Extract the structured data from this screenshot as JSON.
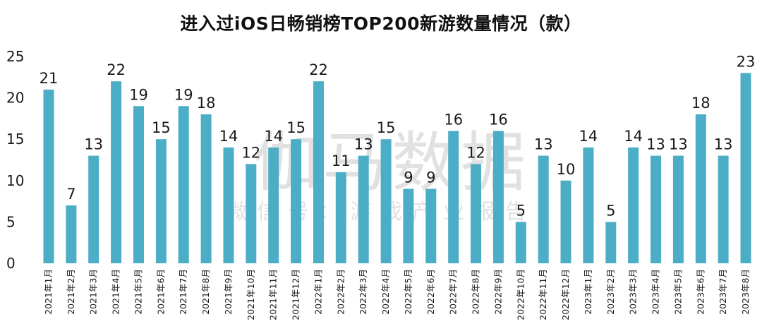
{
  "chart_data": {
    "type": "bar",
    "title": "进入过iOS日畅销榜TOP200新游数量情况（款）",
    "categories": [
      "2021年1月",
      "2021年2月",
      "2021年3月",
      "2021年4月",
      "2021年5月",
      "2021年6月",
      "2021年7月",
      "2021年8月",
      "2021年9月",
      "2021年10月",
      "2021年11月",
      "2021年12月",
      "2022年1月",
      "2022年2月",
      "2022年3月",
      "2022年4月",
      "2022年5月",
      "2022年6月",
      "2022年7月",
      "2022年8月",
      "2022年9月",
      "2022年10月",
      "2022年11月",
      "2022年12月",
      "2023年1月",
      "2023年2月",
      "2023年3月",
      "2023年4月",
      "2023年5月",
      "2023年6月",
      "2023年7月",
      "2023年8月"
    ],
    "values": [
      21,
      7,
      13,
      22,
      19,
      15,
      19,
      18,
      14,
      12,
      14,
      15,
      22,
      11,
      13,
      15,
      9,
      9,
      16,
      12,
      16,
      5,
      13,
      10,
      14,
      5,
      14,
      13,
      13,
      18,
      13,
      23
    ],
    "yticks": [
      0,
      5,
      10,
      15,
      20,
      25
    ],
    "ylim": [
      0,
      25
    ],
    "xlabel": "",
    "ylabel": "",
    "grid": false,
    "bar_color": "#4badc6"
  },
  "watermark": {
    "main": "伽马数据",
    "sub": "微信号：游戏产业报告"
  }
}
